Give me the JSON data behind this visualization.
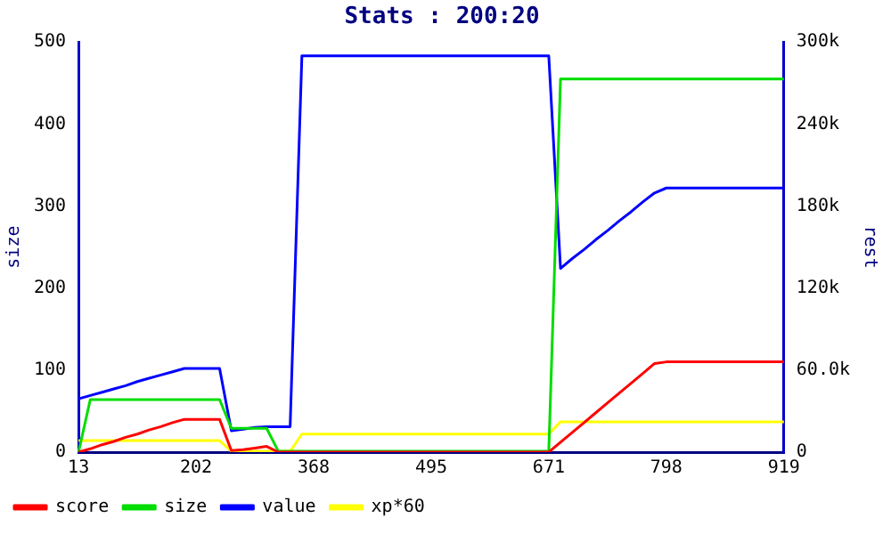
{
  "chart_data": {
    "type": "line",
    "title": "Stats : 200:20",
    "ylabel": "size",
    "y2label": "rest",
    "categories": [
      "13",
      null,
      null,
      null,
      null,
      null,
      null,
      null,
      null,
      null,
      "202",
      null,
      null,
      null,
      null,
      null,
      null,
      null,
      null,
      null,
      "368",
      null,
      null,
      null,
      null,
      null,
      null,
      null,
      null,
      null,
      "495",
      null,
      null,
      null,
      null,
      null,
      null,
      null,
      null,
      null,
      "671",
      null,
      null,
      null,
      null,
      null,
      null,
      null,
      null,
      null,
      "798",
      null,
      null,
      null,
      null,
      null,
      null,
      null,
      null,
      null,
      "919"
    ],
    "series": [
      {
        "name": "score",
        "color": "#ff0000",
        "values": [
          0,
          4,
          9,
          13,
          18,
          22,
          27,
          31,
          36,
          40,
          40,
          40,
          40,
          2,
          3,
          5,
          7,
          0,
          0,
          0,
          0,
          0,
          0,
          0,
          0,
          0,
          0,
          0,
          0,
          0,
          0,
          0,
          0,
          0,
          0,
          0,
          0,
          0,
          0,
          0,
          0,
          12,
          24,
          36,
          48,
          60,
          72,
          84,
          96,
          108,
          110,
          110,
          110,
          110,
          110,
          110,
          110,
          110,
          110,
          110,
          110
        ]
      },
      {
        "name": "size",
        "color": "#00dd00",
        "values": [
          0,
          64,
          64,
          64,
          64,
          64,
          64,
          64,
          64,
          64,
          64,
          64,
          64,
          29,
          29,
          29,
          29,
          1,
          1,
          1,
          1,
          1,
          1,
          1,
          1,
          1,
          1,
          1,
          1,
          1,
          1,
          1,
          1,
          1,
          1,
          1,
          1,
          1,
          1,
          1,
          1,
          455,
          455,
          455,
          455,
          455,
          455,
          455,
          455,
          455,
          455,
          455,
          455,
          455,
          455,
          455,
          455,
          455,
          455,
          455,
          455
        ]
      },
      {
        "name": "value",
        "color": "#0000ff",
        "values": [
          65,
          69,
          73,
          77,
          81,
          86,
          90,
          94,
          98,
          102,
          102,
          102,
          102,
          26,
          28,
          30,
          31,
          31,
          31,
          483,
          483,
          483,
          483,
          483,
          483,
          483,
          483,
          483,
          483,
          483,
          483,
          483,
          483,
          483,
          483,
          483,
          483,
          483,
          483,
          483,
          483,
          224,
          236,
          247,
          259,
          270,
          282,
          293,
          305,
          316,
          322,
          322,
          322,
          322,
          322,
          322,
          322,
          322,
          322,
          322,
          322
        ]
      },
      {
        "name": "xp*60",
        "color": "#ffff00",
        "values": [
          14,
          14,
          14,
          14,
          14,
          14,
          14,
          14,
          14,
          14,
          14,
          14,
          14,
          1,
          1,
          1,
          1,
          1,
          1,
          22,
          22,
          22,
          22,
          22,
          22,
          22,
          22,
          22,
          22,
          22,
          22,
          22,
          22,
          22,
          22,
          22,
          22,
          22,
          22,
          22,
          22,
          37,
          37,
          37,
          37,
          37,
          37,
          37,
          37,
          37,
          37,
          37,
          37,
          37,
          37,
          37,
          37,
          37,
          37,
          37,
          37
        ]
      }
    ],
    "ylim": [
      0,
      500
    ],
    "yticks": [
      0,
      100,
      200,
      300,
      400,
      500
    ],
    "y2lim": [
      0,
      300000
    ],
    "y2ticks": [
      0,
      {
        "value": 60000,
        "label": "60.0k"
      },
      {
        "value": 120000,
        "label": "120k"
      },
      {
        "value": 180000,
        "label": "180k"
      },
      {
        "value": 240000,
        "label": "240k"
      },
      {
        "value": 300000,
        "label": "300k"
      }
    ],
    "legend": "bottom left",
    "grid": false,
    "marker": "none",
    "line_style": "solid"
  }
}
